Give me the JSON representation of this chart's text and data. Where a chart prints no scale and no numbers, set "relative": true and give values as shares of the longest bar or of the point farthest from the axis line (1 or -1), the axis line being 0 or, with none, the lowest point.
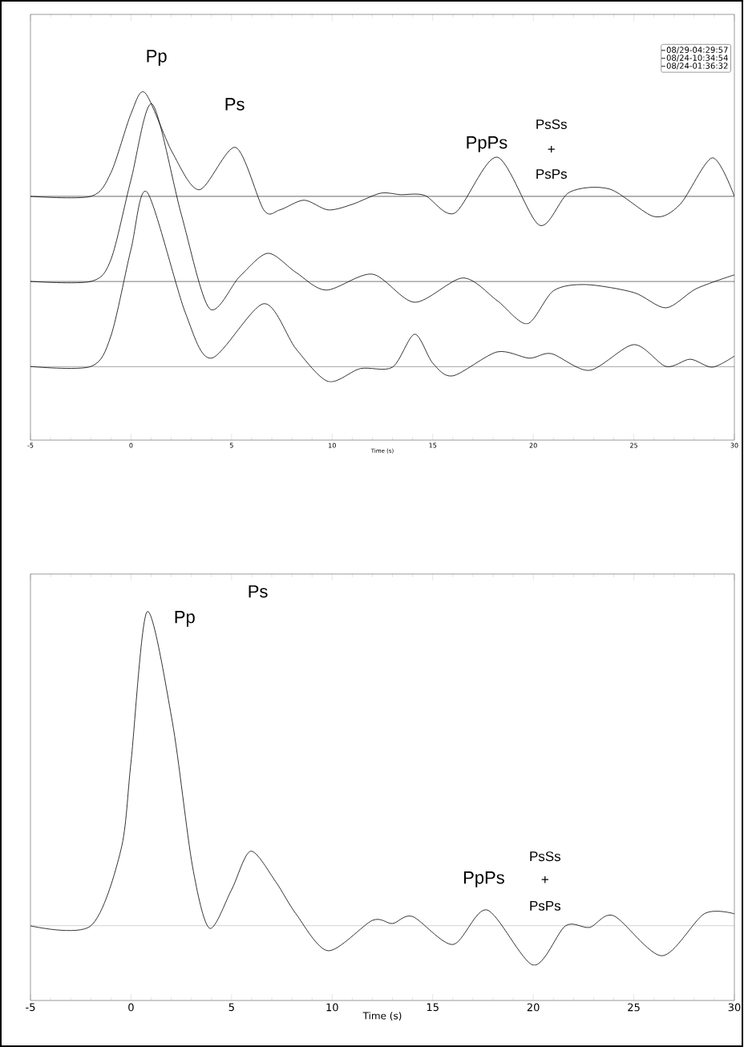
{
  "chart_data": [
    {
      "type": "line",
      "relative": true,
      "xlabel": "Time (s)",
      "xlim": [
        -5,
        30
      ],
      "xticks": [
        -5,
        0,
        5,
        10,
        15,
        20,
        25,
        30
      ],
      "marker": "none",
      "legend": "top right",
      "series": [
        {
          "name": "08/29-04:29:57",
          "color": "#000000",
          "x": [
            -5,
            -2,
            -1,
            0,
            0.7,
            2.05,
            3.4,
            5.2,
            6.6,
            7.4,
            8.6,
            9.8,
            11,
            12.4,
            13.4,
            14.6,
            16.1,
            18.2,
            20.3,
            21.8,
            23.8,
            26.0,
            27.3,
            28.9,
            30
          ],
          "values": [
            0.702,
            0.702,
            0.77,
            0.94,
            1.0,
            0.829,
            0.721,
            0.843,
            0.663,
            0.663,
            0.691,
            0.663,
            0.679,
            0.711,
            0.707,
            0.705,
            0.654,
            0.815,
            0.619,
            0.714,
            0.723,
            0.644,
            0.679,
            0.813,
            0.702
          ]
        },
        {
          "name": "08/24-10:34:54",
          "color": "#000000",
          "x": [
            -5,
            -2,
            -1,
            0,
            1.05,
            2.5,
            3.9,
            5.4,
            6.8,
            8.2,
            9.7,
            12.0,
            14.1,
            16.5,
            18.2,
            19.7,
            21.0,
            22.6,
            25.0,
            26.6,
            28.1,
            30
          ],
          "values": [
            0.457,
            0.457,
            0.52,
            0.75,
            0.968,
            0.65,
            0.379,
            0.471,
            0.538,
            0.483,
            0.432,
            0.478,
            0.397,
            0.467,
            0.402,
            0.335,
            0.43,
            0.448,
            0.425,
            0.381,
            0.436,
            0.476
          ]
        },
        {
          "name": "08/24-01:36:32",
          "color": "#000000",
          "x": [
            -5,
            -2,
            -1,
            0,
            0.8,
            2.7,
            4.0,
            6.6,
            8.2,
            9.8,
            11.4,
            13.0,
            14.1,
            15.0,
            16.0,
            18.2,
            19.8,
            20.9,
            22.8,
            25.0,
            26.6,
            27.8,
            28.9,
            30
          ],
          "values": [
            0.212,
            0.212,
            0.3,
            0.55,
            0.714,
            0.367,
            0.236,
            0.393,
            0.263,
            0.169,
            0.206,
            0.21,
            0.305,
            0.222,
            0.185,
            0.254,
            0.236,
            0.249,
            0.201,
            0.275,
            0.212,
            0.233,
            0.21,
            0.242
          ]
        }
      ],
      "ref_lines": [
        {
          "axis": "y",
          "value": 0.702,
          "color": "#000000"
        },
        {
          "axis": "y",
          "value": 0.457,
          "color": "#000000"
        },
        {
          "axis": "y",
          "value": 0.212,
          "color": "#000000"
        }
      ],
      "annotations": [
        "Pp",
        "Ps",
        "PpPs",
        "PsSs",
        "+",
        "PsPs"
      ]
    },
    {
      "type": "line",
      "relative": true,
      "xlabel": "Time (s)",
      "xlim": [
        -5,
        30
      ],
      "xticks": [
        -5,
        0,
        5,
        10,
        15,
        20,
        25,
        30
      ],
      "marker": "none",
      "series": [
        {
          "color": "#000000",
          "x": [
            -5,
            -2,
            -0.5,
            0,
            0.8,
            2.05,
            3.05,
            3.9,
            5.0,
            5.95,
            7.2,
            8.2,
            9.8,
            12.0,
            13.0,
            14.0,
            16.0,
            17.7,
            20.0,
            21.6,
            22.8,
            24.0,
            26.4,
            28.5,
            30
          ],
          "values": [
            0.192,
            0.192,
            0.388,
            0.614,
            1.0,
            0.718,
            0.347,
            0.186,
            0.285,
            0.384,
            0.305,
            0.223,
            0.128,
            0.206,
            0.198,
            0.216,
            0.144,
            0.233,
            0.091,
            0.192,
            0.188,
            0.218,
            0.115,
            0.223,
            0.223
          ]
        }
      ],
      "ref_lines": [
        {
          "axis": "y",
          "value": 0.192,
          "color": "#808080"
        }
      ],
      "annotations": [
        "Pp",
        "Ps",
        "PpPs",
        "PsSs",
        "+",
        "PsPs"
      ]
    }
  ]
}
